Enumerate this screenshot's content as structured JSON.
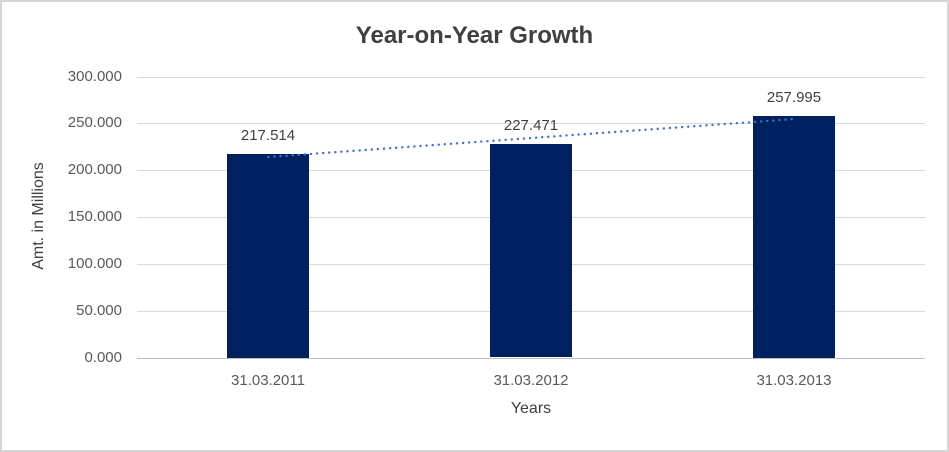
{
  "window": {
    "background": "#FFFFFF",
    "border_color": "#D6D6D6"
  },
  "chart_data": {
    "type": "bar",
    "title": "Year-on-Year Growth",
    "xlabel": "Years",
    "ylabel": "Amt. in Millions",
    "categories": [
      "31.03.2011",
      "31.03.2012",
      "31.03.2013"
    ],
    "values": [
      217.514,
      227.471,
      257.995
    ],
    "data_labels": [
      "217.514",
      "227.471",
      "257.995"
    ],
    "ylim": [
      0,
      300
    ],
    "ytick_step": 50,
    "ytick_labels": [
      "0.000",
      "50.000",
      "100.000",
      "150.000",
      "200.000",
      "250.000",
      "300.000"
    ],
    "grid": true,
    "legend": "none",
    "bar_color": "#002060",
    "trendline": {
      "type": "linear",
      "style": "dotted",
      "color": "#4472C4"
    },
    "colors": {
      "gridline": "#D9D9D9",
      "axis_line": "#BFBFBF",
      "title_text": "#404040",
      "tick_text": "#595959",
      "label_text": "#404040"
    }
  }
}
